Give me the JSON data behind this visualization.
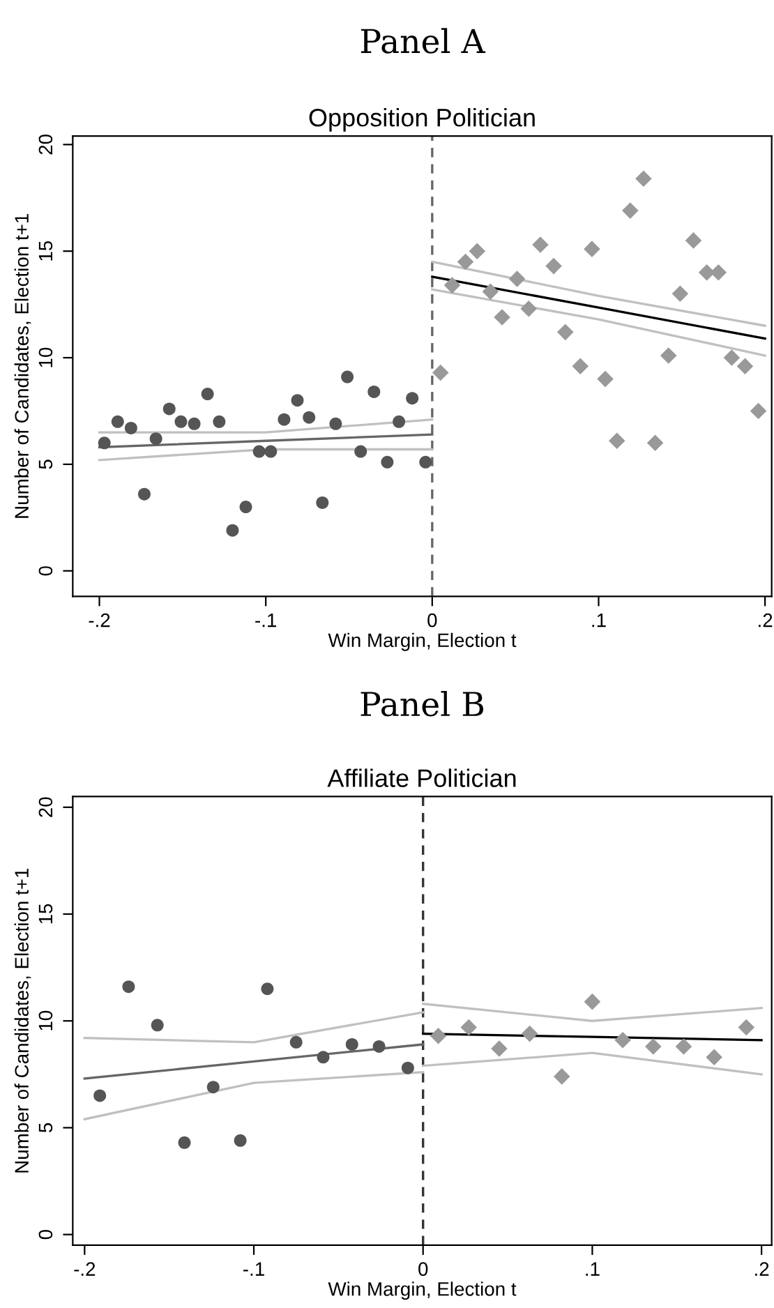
{
  "chart_data": [
    {
      "type": "scatter",
      "title": "Panel A",
      "subtitle": "Opposition Politician",
      "xlabel": "Win Margin, Election t",
      "ylabel": "Number of Candidates, Election t+1",
      "xlim": [
        -0.216,
        0.204
      ],
      "ylim": [
        -1.2,
        20.4
      ],
      "xticks": [
        {
          "value": -0.2,
          "label": "-.2"
        },
        {
          "value": -0.1,
          "label": "-.1"
        },
        0,
        {
          "value": 0.1,
          "label": ".1"
        },
        {
          "value": 0.2,
          "label": ".2"
        }
      ],
      "yticks": [
        0,
        5,
        10,
        15,
        20
      ],
      "grid": false,
      "legend": false,
      "ref_lines": [
        {
          "axis": "x",
          "value": 0,
          "color": "#666666",
          "line_style": "dashed"
        }
      ],
      "series": [
        {
          "type": "scatter",
          "marker": "circle",
          "color": "#555555",
          "x": [
            -0.197,
            -0.189,
            -0.181,
            -0.173,
            -0.166,
            -0.158,
            -0.151,
            -0.143,
            -0.135,
            -0.128,
            -0.12,
            -0.112,
            -0.104,
            -0.097,
            -0.089,
            -0.081,
            -0.074,
            -0.066,
            -0.058,
            -0.051,
            -0.043,
            -0.035,
            -0.027,
            -0.02,
            -0.012,
            -0.004
          ],
          "values": [
            6.0,
            7.0,
            6.7,
            3.6,
            6.2,
            7.6,
            7.0,
            6.9,
            8.3,
            7.0,
            1.9,
            3.0,
            5.6,
            5.6,
            7.1,
            8.0,
            7.2,
            3.2,
            6.9,
            9.1,
            5.6,
            8.4,
            5.1,
            7.0,
            8.1,
            5.1
          ]
        },
        {
          "type": "scatter",
          "marker": "diamond",
          "color": "#999999",
          "x": [
            0.005,
            0.012,
            0.02,
            0.027,
            0.035,
            0.042,
            0.051,
            0.058,
            0.065,
            0.073,
            0.08,
            0.089,
            0.096,
            0.104,
            0.111,
            0.119,
            0.127,
            0.134,
            0.142,
            0.149,
            0.157,
            0.165,
            0.172,
            0.18,
            0.188,
            0.196
          ],
          "values": [
            9.3,
            13.4,
            14.5,
            15.0,
            13.1,
            11.9,
            13.7,
            12.3,
            15.3,
            14.3,
            11.2,
            9.6,
            15.1,
            9.0,
            6.1,
            16.9,
            18.4,
            6.0,
            10.1,
            13.0,
            15.5,
            14.0,
            14.0,
            10.0,
            9.6,
            7.5
          ]
        },
        {
          "type": "line",
          "marker": "none",
          "color": "#c0c0c0",
          "x": [
            -0.2,
            -0.1,
            0
          ],
          "values": [
            5.2,
            5.7,
            5.7
          ]
        },
        {
          "type": "line",
          "marker": "none",
          "color": "#c0c0c0",
          "x": [
            -0.2,
            -0.1,
            0
          ],
          "values": [
            6.5,
            6.5,
            7.1
          ]
        },
        {
          "type": "line",
          "marker": "none",
          "color": "#c0c0c0",
          "x": [
            0,
            0.1,
            0.2
          ],
          "values": [
            13.2,
            11.8,
            10.1
          ]
        },
        {
          "type": "line",
          "marker": "none",
          "color": "#c0c0c0",
          "x": [
            0,
            0.1,
            0.2
          ],
          "values": [
            14.5,
            12.9,
            11.5
          ]
        },
        {
          "type": "line",
          "marker": "none",
          "color": "#666666",
          "x": [
            -0.2,
            -0.1,
            0
          ],
          "values": [
            5.8,
            6.1,
            6.4
          ]
        },
        {
          "type": "line",
          "marker": "none",
          "color": "#000000",
          "x": [
            0,
            0.1,
            0.2
          ],
          "values": [
            13.8,
            12.35,
            10.9
          ]
        }
      ]
    },
    {
      "type": "scatter",
      "title": "Panel B",
      "subtitle": "Affiliate Politician",
      "xlabel": "Win Margin, Election t",
      "ylabel": "Number of Candidates, Election t+1",
      "xlim": [
        -0.207,
        0.206
      ],
      "ylim": [
        -0.5,
        20.5
      ],
      "xticks": [
        {
          "value": -0.2,
          "label": "-.2"
        },
        {
          "value": -0.1,
          "label": "-.1"
        },
        0,
        {
          "value": 0.1,
          "label": ".1"
        },
        {
          "value": 0.2,
          "label": ".2"
        }
      ],
      "yticks": [
        0,
        5,
        10,
        15,
        20
      ],
      "grid": false,
      "legend": false,
      "ref_lines": [
        {
          "axis": "x",
          "value": 0,
          "color": "#333333",
          "line_style": "dashed"
        }
      ],
      "series": [
        {
          "type": "scatter",
          "marker": "circle",
          "color": "#555555",
          "x": [
            -0.191,
            -0.174,
            -0.157,
            -0.141,
            -0.124,
            -0.108,
            -0.092,
            -0.075,
            -0.059,
            -0.042,
            -0.026,
            -0.009
          ],
          "values": [
            6.5,
            11.6,
            9.8,
            4.3,
            6.9,
            4.4,
            11.5,
            9.0,
            8.3,
            8.9,
            8.8,
            7.8
          ]
        },
        {
          "type": "scatter",
          "marker": "diamond",
          "color": "#999999",
          "x": [
            0.009,
            0.027,
            0.045,
            0.063,
            0.082,
            0.1,
            0.118,
            0.136,
            0.154,
            0.172,
            0.191
          ],
          "values": [
            9.3,
            9.7,
            8.7,
            9.4,
            7.4,
            10.9,
            9.1,
            8.8,
            8.8,
            8.3,
            9.7
          ]
        },
        {
          "type": "line",
          "marker": "none",
          "color": "#c0c0c0",
          "x": [
            -0.2,
            -0.1,
            0
          ],
          "values": [
            5.4,
            7.1,
            7.6
          ]
        },
        {
          "type": "line",
          "marker": "none",
          "color": "#c0c0c0",
          "x": [
            -0.2,
            -0.1,
            0
          ],
          "values": [
            9.2,
            9.0,
            10.4
          ]
        },
        {
          "type": "line",
          "marker": "none",
          "color": "#c0c0c0",
          "x": [
            0,
            0.1,
            0.2
          ],
          "values": [
            7.9,
            8.5,
            7.5
          ]
        },
        {
          "type": "line",
          "marker": "none",
          "color": "#c0c0c0",
          "x": [
            0,
            0.1,
            0.2
          ],
          "values": [
            10.8,
            10.0,
            10.6
          ]
        },
        {
          "type": "line",
          "marker": "none",
          "color": "#666666",
          "x": [
            -0.2,
            -0.1,
            0
          ],
          "values": [
            7.3,
            8.1,
            8.9
          ]
        },
        {
          "type": "line",
          "marker": "none",
          "color": "#000000",
          "x": [
            0,
            0.1,
            0.2
          ],
          "values": [
            9.4,
            9.25,
            9.1
          ]
        }
      ]
    }
  ]
}
